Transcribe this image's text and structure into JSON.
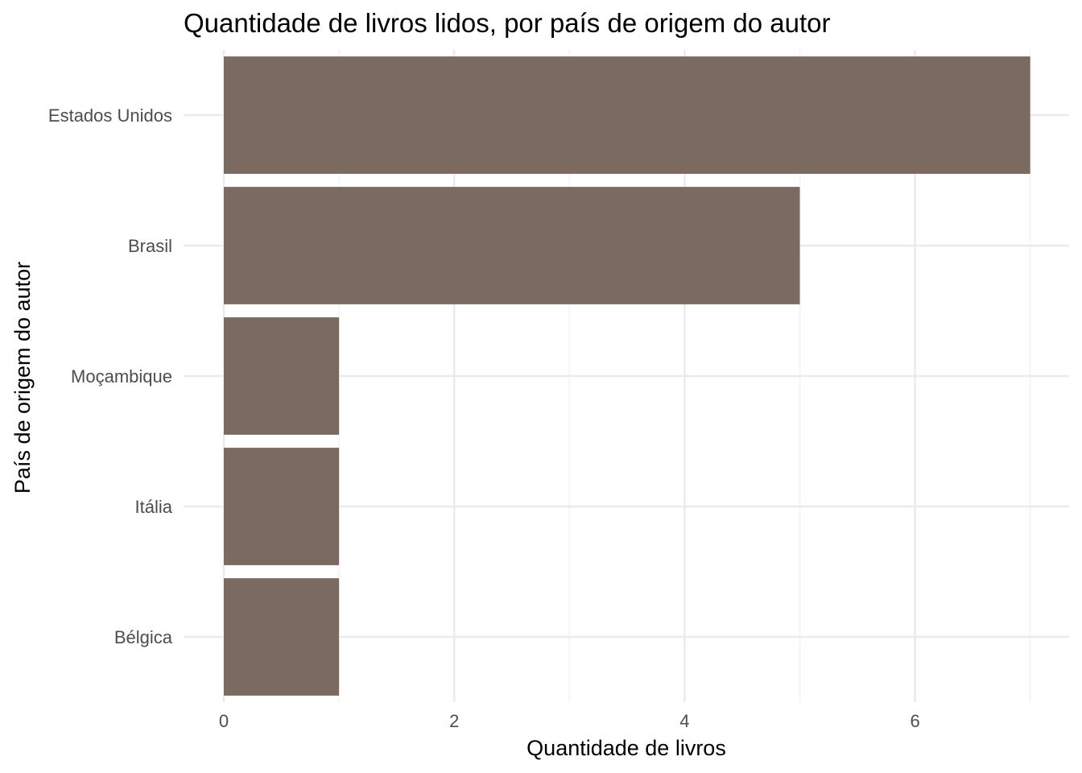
{
  "chart_data": {
    "type": "bar",
    "orientation": "horizontal",
    "title": "Quantidade de livros lidos, por país de origem do autor",
    "xlabel": "Quantidade de livros",
    "ylabel": "País de origem do autor",
    "categories": [
      "Estados Unidos",
      "Brasil",
      "Moçambique",
      "Itália",
      "Bélgica"
    ],
    "values": [
      7,
      5,
      1,
      1,
      1
    ],
    "xlim": [
      0,
      7
    ],
    "xticks": [
      0,
      2,
      4,
      6
    ],
    "xticks_minor": [
      1,
      3,
      5,
      7
    ],
    "grid": true,
    "bar_color": "#7b6a60"
  }
}
